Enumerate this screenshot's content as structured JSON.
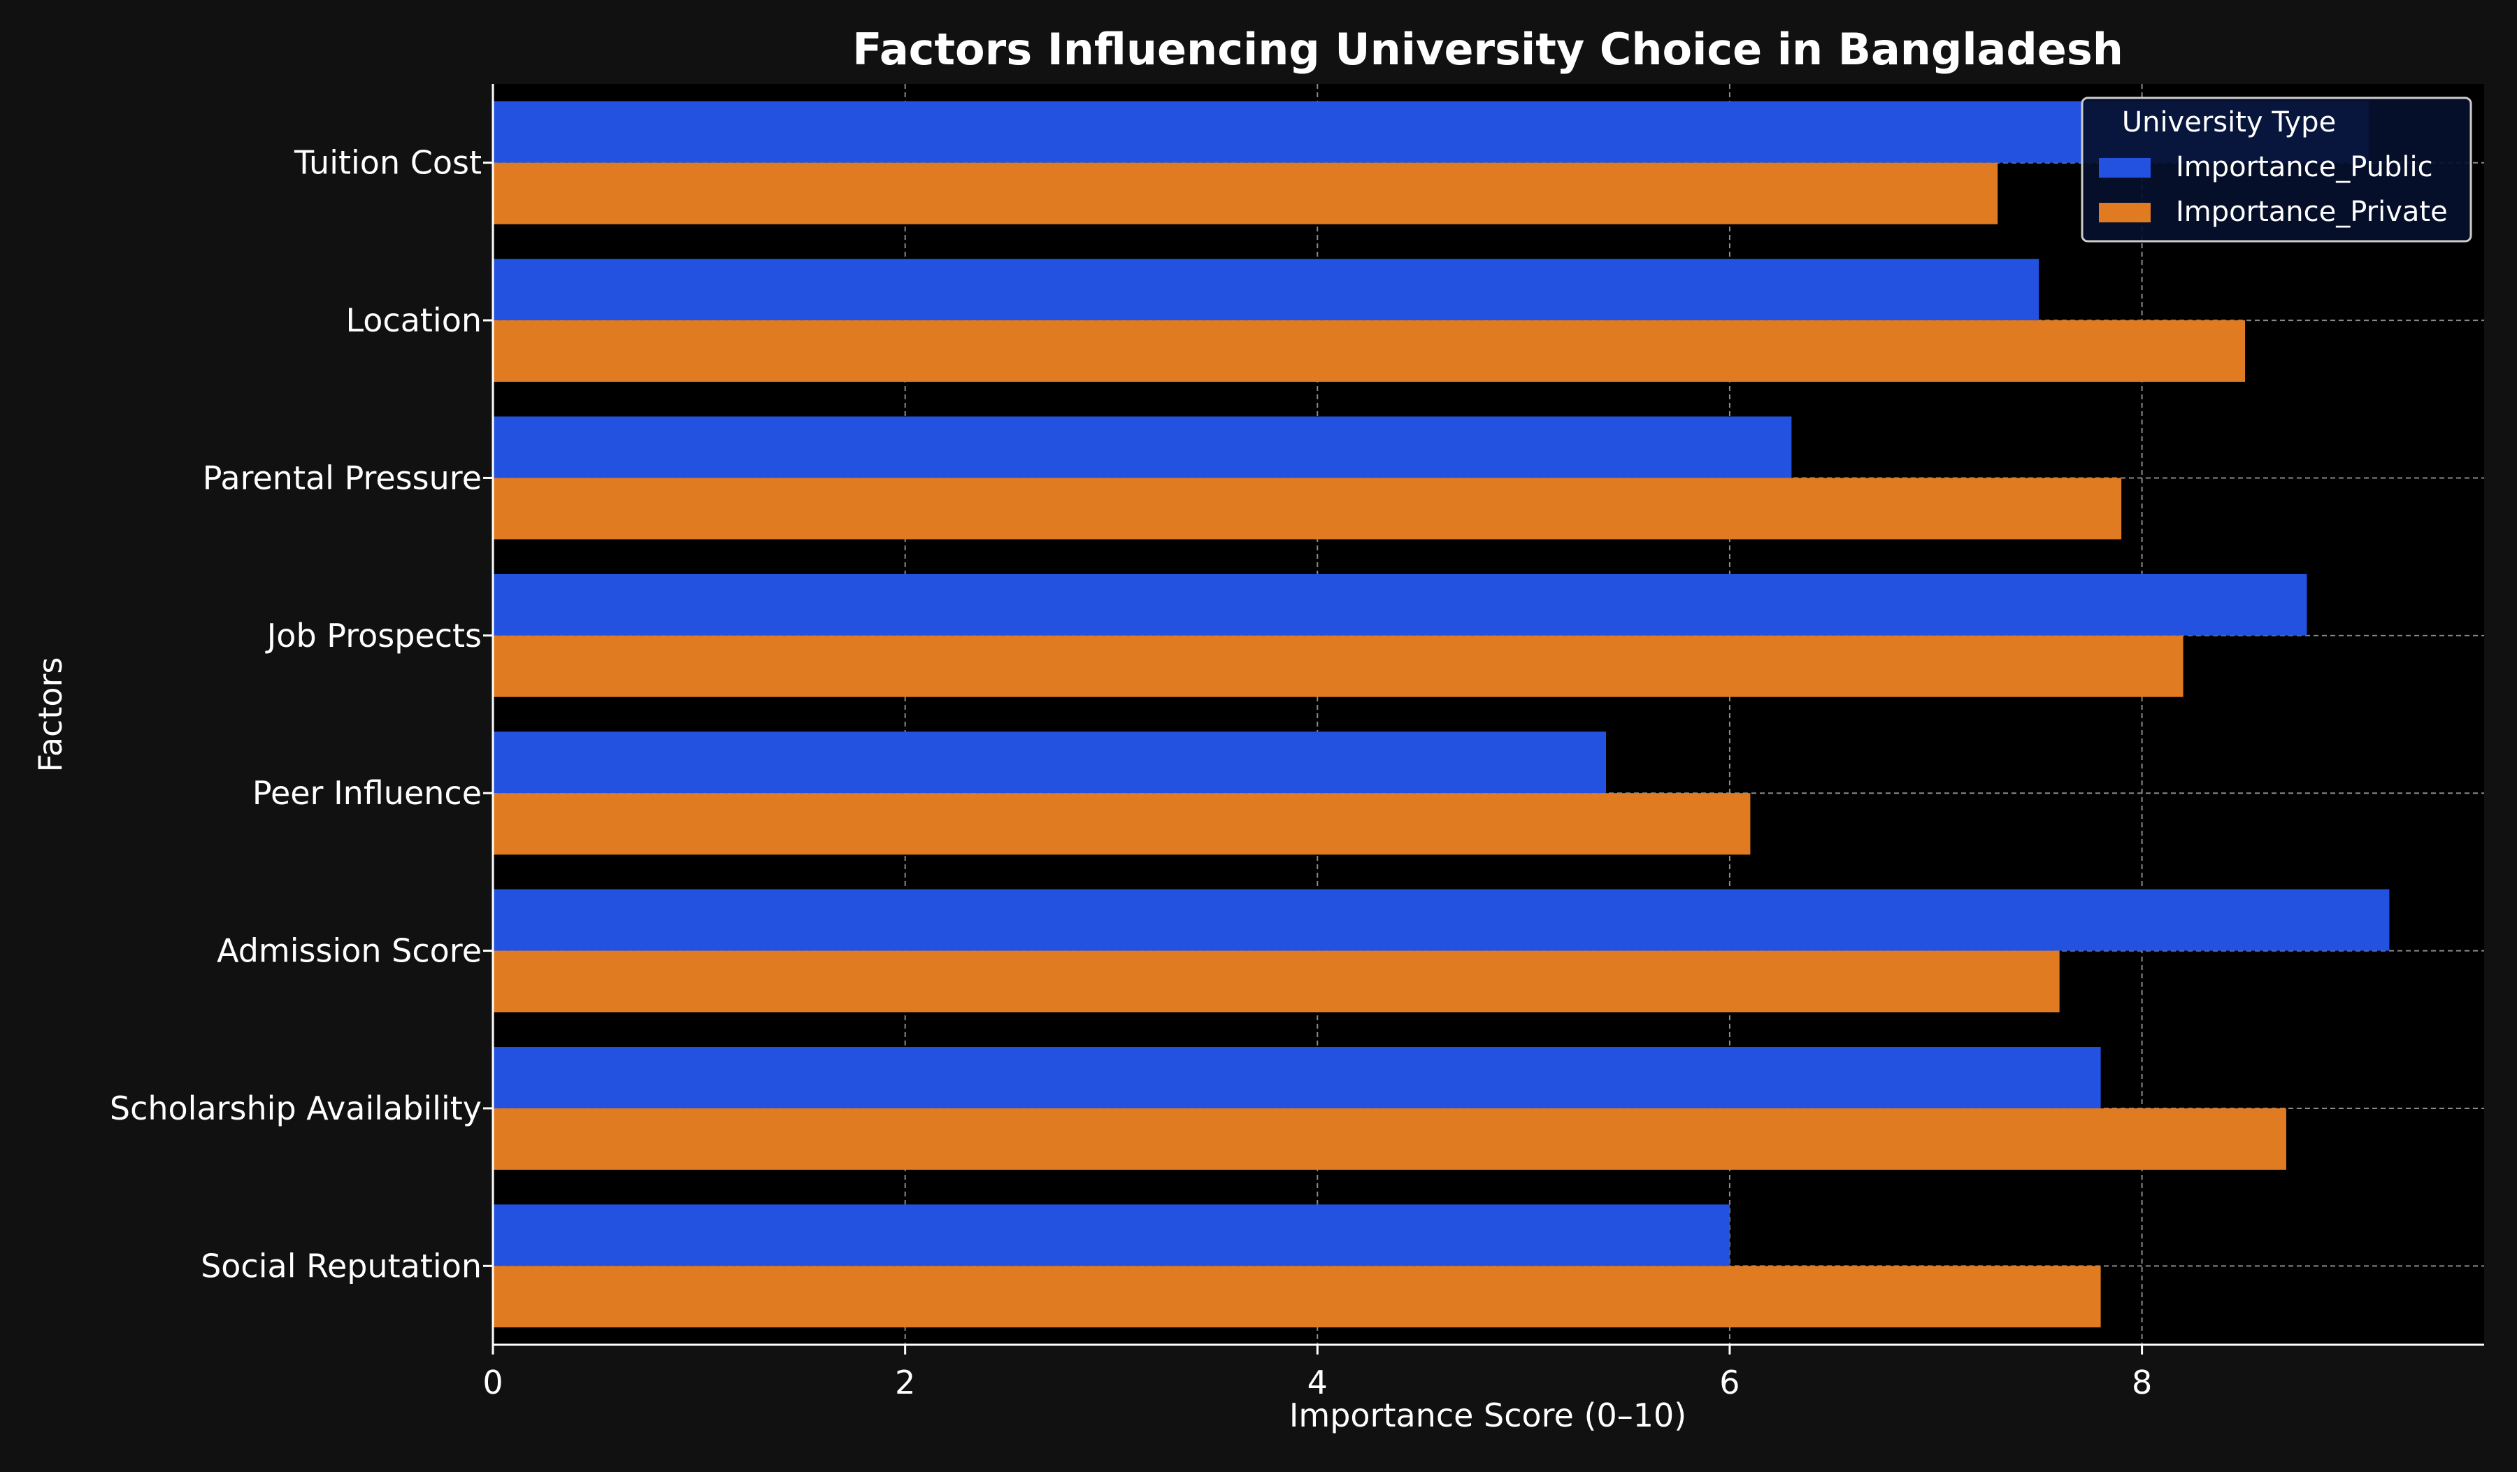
{
  "chart_data": {
    "type": "bar",
    "orientation": "horizontal",
    "title": "Factors Influencing University Choice in Bangladesh",
    "xlabel": "Importance Score (0–10)",
    "ylabel": "Factors",
    "categories": [
      "Tuition Cost",
      "Location",
      "Parental Pressure",
      "Job Prospects",
      "Peer Influence",
      "Admission Score",
      "Scholarship Availability",
      "Social Reputation"
    ],
    "series": [
      {
        "name": "Importance_Public",
        "color": "#2352e0",
        "values": [
          9.1,
          7.5,
          6.3,
          8.8,
          5.4,
          9.2,
          7.8,
          6.0
        ]
      },
      {
        "name": "Importance_Private",
        "color": "#e07b22",
        "values": [
          7.3,
          8.5,
          7.9,
          8.2,
          6.1,
          7.6,
          8.7,
          7.8
        ]
      }
    ],
    "xlim": [
      0,
      9.66
    ],
    "xticks": [
      "0",
      "2",
      "4",
      "6",
      "8"
    ],
    "grid": true,
    "legend": {
      "title": "University Type",
      "position": "top-right"
    },
    "background": "#111111",
    "plot_background": "#000000"
  }
}
